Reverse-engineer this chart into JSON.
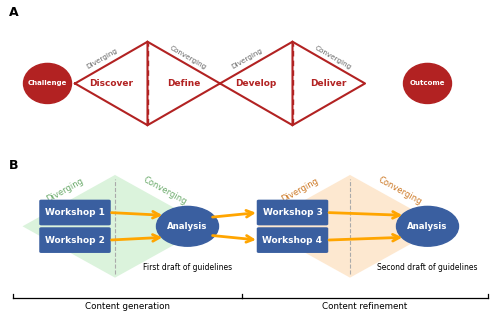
{
  "bg_color": "#ffffff",
  "dark_red": "#b22222",
  "circle_color": "#b22222",
  "circle_text_color": "#ffffff",
  "blue_box_color": "#3a5fa0",
  "blue_circle_color": "#3a5fa0",
  "blue_text_color": "#ffffff",
  "orange_arrow_color": "#FFA500",
  "green_bg": "#c8edca",
  "orange_bg": "#fddcb8",
  "green_label_color": "#6aaa6a",
  "orange_label_color": "#cc7722",
  "panel_a_label": "A",
  "panel_b_label": "B",
  "challenge_label": "Challenge",
  "outcome_label": "Outcome",
  "discover_label": "Discover",
  "define_label": "Define",
  "develop_label": "Develop",
  "deliver_label": "Deliver",
  "diverging_label": "Diverging",
  "converging_label": "Converging",
  "workshop1_label": "Workshop 1",
  "workshop2_label": "Workshop 2",
  "workshop3_label": "Workshop 3",
  "workshop4_label": "Workshop 4",
  "analysis1_label": "Analysis",
  "analysis2_label": "Analysis",
  "first_draft_label": "First draft of guidelines",
  "second_draft_label": "Second draft of guidelines",
  "content_gen_label": "Content generation",
  "content_ref_label": "Content refinement",
  "panel_a_axrect": [
    0.0,
    0.48,
    1.0,
    0.52
  ],
  "panel_b_axrect": [
    0.0,
    0.0,
    1.0,
    0.52
  ],
  "panelA_xlim": [
    0,
    10
  ],
  "panelA_ylim": [
    0,
    4
  ],
  "panelB_xlim": [
    0,
    10
  ],
  "panelB_ylim": [
    0,
    5.2
  ]
}
